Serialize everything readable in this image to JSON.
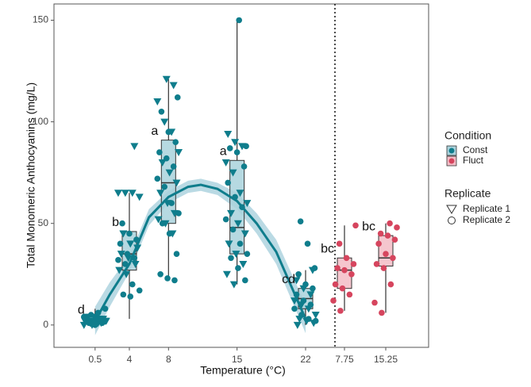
{
  "chart_data": {
    "type": "box",
    "x_label": "Temperature (°C)",
    "y_label": "Total Monomeric Anthocyanins (mg/L)",
    "ylim": [
      -11,
      158
    ],
    "yticks": [
      0,
      50,
      100,
      150
    ],
    "xlim": [
      -3.7,
      25
    ],
    "legend_title": "Condition",
    "replicate_title": "Replicate",
    "replicates": [
      "Replicate 1",
      "Replicate 2"
    ],
    "fit": {
      "x": [
        0.5,
        2,
        4,
        6,
        8,
        10,
        11.3,
        13,
        15,
        17,
        19,
        22
      ],
      "y": [
        2,
        15,
        30,
        53,
        63,
        68,
        69,
        67,
        61,
        50,
        36,
        3
      ],
      "lower": [
        -5,
        9,
        26,
        49,
        60,
        65,
        66,
        64,
        57,
        45,
        30,
        -4
      ],
      "upper": [
        9,
        21,
        34,
        57,
        66,
        71,
        72,
        70,
        65,
        55,
        42,
        10
      ]
    },
    "series": [
      {
        "name": "Const",
        "color": "#0f7d8c",
        "box_fill": "#a9d2dc",
        "groups": [
          {
            "x": 0.5,
            "letter": "d",
            "box": [
              0,
              1,
              2,
              3,
              8
            ],
            "replicate_1": [
              0,
              1,
              1,
              2,
              2,
              3,
              3,
              4,
              4,
              1,
              2,
              0,
              3,
              2,
              1,
              2
            ],
            "replicate_2": [
              0,
              1,
              2,
              2,
              3,
              4,
              5,
              6,
              8,
              1,
              3,
              2,
              4,
              1
            ]
          },
          {
            "x": 4,
            "letter": "b",
            "box": [
              3,
              27,
              35,
              46,
              65
            ],
            "replicate_1": [
              88,
              65,
              65,
              65,
              63,
              45,
              40,
              38,
              35,
              33,
              30,
              27,
              25
            ],
            "replicate_2": [
              50,
              45,
              42,
              40,
              35,
              33,
              32,
              30,
              20,
              17,
              15,
              14
            ]
          },
          {
            "x": 8,
            "letter": "a",
            "box": [
              22,
              50,
              70,
              91,
              121
            ],
            "replicate_1": [
              121,
              118,
              110,
              100,
              95,
              85,
              80,
              75,
              70,
              65,
              60,
              55,
              52,
              50,
              45
            ],
            "replicate_2": [
              112,
              105,
              95,
              90,
              85,
              82,
              78,
              72,
              68,
              60,
              55,
              50,
              45,
              35,
              25,
              23,
              22
            ]
          },
          {
            "x": 15,
            "letter": "a",
            "box": [
              20,
              35,
              48,
              81,
              150
            ],
            "replicate_1": [
              94,
              90,
              88,
              80,
              75,
              65,
              60,
              55,
              50,
              45,
              40,
              35,
              30,
              25,
              20
            ],
            "replicate_2": [
              150,
              88,
              87,
              85,
              78,
              70,
              63,
              58,
              52,
              47,
              40,
              35,
              33,
              28,
              22
            ]
          },
          {
            "x": 22,
            "letter": "cd",
            "box": [
              0,
              8,
              13,
              18,
              27
            ],
            "replicate_1": [
              27,
              22,
              18,
              15,
              12,
              10,
              8,
              5,
              3,
              2,
              1,
              0
            ],
            "replicate_2": [
              51,
              40,
              28,
              25,
              20,
              18,
              15,
              12,
              10,
              8,
              5,
              3,
              2
            ]
          }
        ]
      },
      {
        "name": "Fluct",
        "color": "#d6455e",
        "box_fill": "#f3bcc6",
        "groups": [
          {
            "category": "7.75",
            "letter": "bc",
            "box": [
              7,
              18,
              27,
              33,
              49
            ],
            "replicate_2": [
              49,
              40,
              33,
              30,
              28,
              27,
              25,
              20,
              18,
              15,
              12,
              7
            ]
          },
          {
            "category": "15.25",
            "letter": "bc",
            "box": [
              6,
              29,
              33,
              44,
              50
            ],
            "replicate_2": [
              50,
              48,
              45,
              44,
              42,
              40,
              35,
              33,
              30,
              28,
              20,
              11,
              6
            ]
          }
        ]
      }
    ]
  }
}
